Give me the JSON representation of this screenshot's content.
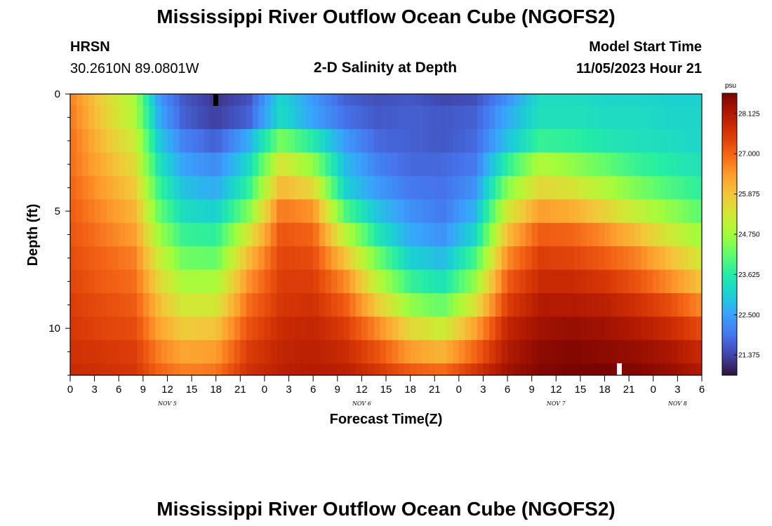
{
  "page": {
    "title": "Mississippi River Outflow Ocean Cube (NGOFS2)",
    "title_bottom": "Mississippi River Outflow Ocean Cube (NGOFS2)",
    "station": "HRSN",
    "coords": "30.2610N  89.0801W",
    "plot_title": "2-D Salinity at Depth",
    "model_start_label": "Model Start Time",
    "model_start_value": "11/05/2023 Hour 21"
  },
  "chart_data": {
    "type": "heatmap",
    "title": "2-D Salinity at Depth",
    "xlabel": "Forecast Time(Z)",
    "ylabel": "Depth (ft)",
    "x_range_hours": [
      0,
      78
    ],
    "y_range_ft": [
      0,
      12
    ],
    "y_ticks": [
      0,
      5,
      10
    ],
    "x_tick_labels": [
      "0",
      "3",
      "6",
      "9",
      "12",
      "15",
      "18",
      "21",
      "0",
      "3",
      "6",
      "9",
      "12",
      "15",
      "18",
      "21",
      "0",
      "3",
      "6",
      "9",
      "12",
      "15",
      "18",
      "21",
      "0",
      "3",
      "6"
    ],
    "date_labels": [
      {
        "label": "NOV 5",
        "hour": 12
      },
      {
        "label": "NOV 6",
        "hour": 36
      },
      {
        "label": "NOV 7",
        "hour": 60
      },
      {
        "label": "NOV 8",
        "hour": 75
      }
    ],
    "colorbar": {
      "unit": "psu",
      "min": 20.81,
      "max": 28.69,
      "tick_values": [
        "21.375",
        "22.500",
        "23.625",
        "24.750",
        "25.875",
        "27.000",
        "28.125"
      ],
      "colormap": [
        "#30123b",
        "#4145ab",
        "#4675ed",
        "#39a2fc",
        "#1bcfd4",
        "#24eca6",
        "#61fc6c",
        "#a4fc3b",
        "#d1e834",
        "#f3c63a",
        "#fe9b2d",
        "#f36315",
        "#d93806",
        "#b11901",
        "#7a0402"
      ]
    },
    "layers_ft": [
      0,
      0.5,
      1.5,
      2.5,
      3.5,
      4.5,
      5.5,
      6.5,
      7.5,
      8.5,
      9.5,
      10.5,
      11.5,
      12
    ],
    "hours": [
      0,
      4,
      8,
      11,
      14,
      18,
      22,
      26,
      30,
      34,
      38,
      42,
      46,
      50,
      54,
      58,
      62,
      66,
      70,
      74,
      78
    ],
    "salinity_psu": [
      [
        26.7,
        25.7,
        24.8,
        22.4,
        21.6,
        21.2,
        21.5,
        23.2,
        22.4,
        21.7,
        21.5,
        21.6,
        21.4,
        21.5,
        22.3,
        23.3,
        23.3,
        23.2,
        23.2,
        23.1,
        23.1
      ],
      [
        26.8,
        25.8,
        24.9,
        22.6,
        21.7,
        21.3,
        21.7,
        23.3,
        22.5,
        21.9,
        21.6,
        21.7,
        21.6,
        21.7,
        22.6,
        23.4,
        23.4,
        23.3,
        23.3,
        23.2,
        23.2
      ],
      [
        26.9,
        26.0,
        25.2,
        23.0,
        22.1,
        21.7,
        22.6,
        24.4,
        23.6,
        22.4,
        21.8,
        21.7,
        21.6,
        21.8,
        22.9,
        23.8,
        23.7,
        23.5,
        23.4,
        23.3,
        23.2
      ],
      [
        26.9,
        26.2,
        25.5,
        23.4,
        22.5,
        22.2,
        23.2,
        25.4,
        24.6,
        22.8,
        22.1,
        21.8,
        21.8,
        22.0,
        23.7,
        24.9,
        24.6,
        24.2,
        23.8,
        23.6,
        23.4
      ],
      [
        27.0,
        26.4,
        25.8,
        23.8,
        22.9,
        22.6,
        23.7,
        26.1,
        25.6,
        23.1,
        22.4,
        22.0,
        21.9,
        22.3,
        24.5,
        25.6,
        25.4,
        24.9,
        24.4,
        24.0,
        23.7
      ],
      [
        27.1,
        26.6,
        26.1,
        24.2,
        23.3,
        23.1,
        24.4,
        26.8,
        26.5,
        24.0,
        22.9,
        22.3,
        22.0,
        22.7,
        25.3,
        26.4,
        26.2,
        25.7,
        25.1,
        24.6,
        24.1
      ],
      [
        27.2,
        26.8,
        26.4,
        24.7,
        23.8,
        23.7,
        25.3,
        27.2,
        27.0,
        25.0,
        23.5,
        22.6,
        22.3,
        23.2,
        26.0,
        27.1,
        27.0,
        26.6,
        26.0,
        25.3,
        24.7
      ],
      [
        27.3,
        27.0,
        26.7,
        25.2,
        24.3,
        24.2,
        26.0,
        27.4,
        27.3,
        25.9,
        24.3,
        23.1,
        22.8,
        23.9,
        26.6,
        27.5,
        27.4,
        27.1,
        26.7,
        26.0,
        25.3
      ],
      [
        27.4,
        27.1,
        26.9,
        25.6,
        24.8,
        24.8,
        26.5,
        27.5,
        27.5,
        26.6,
        25.0,
        23.8,
        23.4,
        24.6,
        27.1,
        27.8,
        27.8,
        27.6,
        27.2,
        26.6,
        25.9
      ],
      [
        27.5,
        27.3,
        27.1,
        26.0,
        25.3,
        25.3,
        26.9,
        27.6,
        27.7,
        27.1,
        25.8,
        24.6,
        24.2,
        25.4,
        27.5,
        28.1,
        28.1,
        28.0,
        27.7,
        27.3,
        26.6
      ],
      [
        27.6,
        27.4,
        27.3,
        26.3,
        25.8,
        25.9,
        27.2,
        27.8,
        27.9,
        27.5,
        26.6,
        25.6,
        25.2,
        26.3,
        27.9,
        28.3,
        28.4,
        28.3,
        28.1,
        27.8,
        27.3
      ],
      [
        27.7,
        27.6,
        27.5,
        26.7,
        26.3,
        26.4,
        27.5,
        27.9,
        28.0,
        27.8,
        27.2,
        26.4,
        26.1,
        27.0,
        28.1,
        28.5,
        28.6,
        28.5,
        28.4,
        28.2,
        27.8
      ],
      [
        27.8,
        27.7,
        27.6,
        27.0,
        26.7,
        26.8,
        27.7,
        28.0,
        28.1,
        28.0,
        27.6,
        27.1,
        26.9,
        27.6,
        28.3,
        28.6,
        28.7,
        28.7,
        28.6,
        28.4,
        28.1
      ]
    ]
  }
}
